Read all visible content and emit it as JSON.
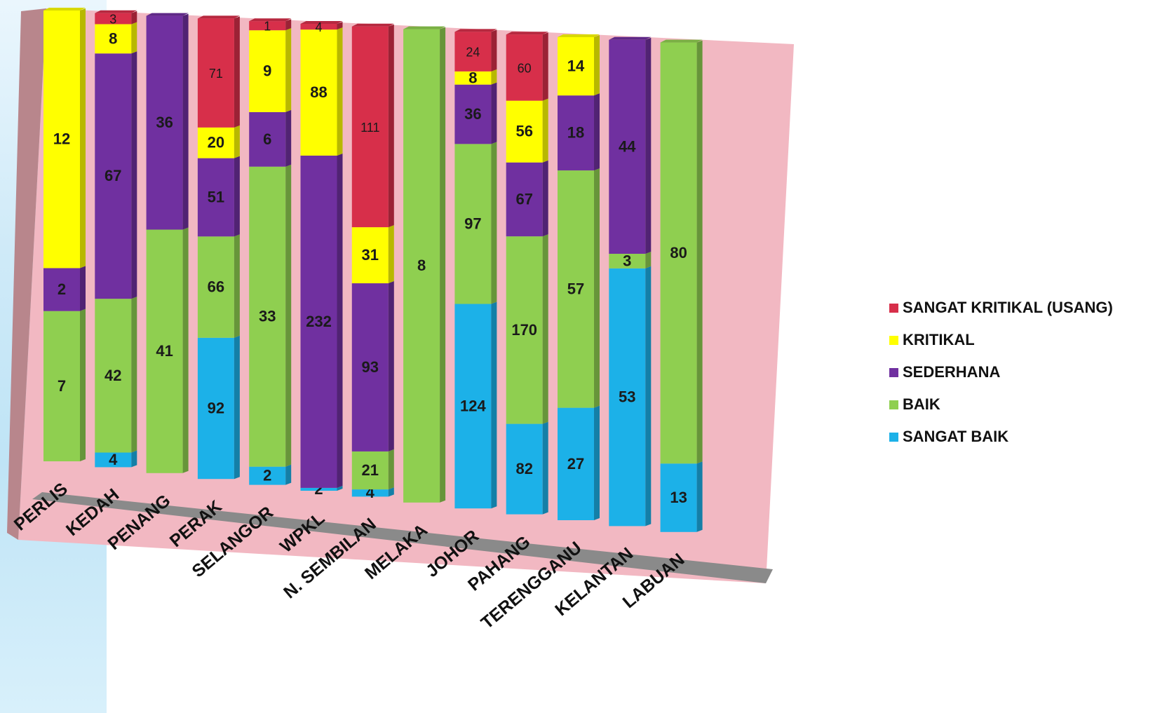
{
  "colors": {
    "plot_back_wall": "#f2b8c2",
    "plot_side_wall": "#b8868c",
    "floor": "#8a8a8a"
  },
  "chart_data": {
    "type": "bar",
    "stacked": true,
    "three_d": true,
    "title": "",
    "xlabel": "",
    "ylabel": "",
    "categories": [
      "PERLIS",
      "KEDAH",
      "PENANG",
      "PERAK",
      "SELANGOR",
      "WPKL",
      "N. SEMBILAN",
      "MELAKA",
      "JOHOR",
      "PAHANG",
      "TERENGGANU",
      "KELANTAN",
      "LABUAN"
    ],
    "series": [
      {
        "name": "SANGAT BAIK",
        "color": "#1cb1e8",
        "values": [
          null,
          4,
          null,
          92,
          2,
          2,
          4,
          null,
          124,
          82,
          27,
          53,
          13
        ]
      },
      {
        "name": "BAIK",
        "color": "#8fcf50",
        "values": [
          7,
          42,
          41,
          66,
          33,
          null,
          21,
          8,
          97,
          170,
          57,
          3,
          80
        ]
      },
      {
        "name": "SEDERHANA",
        "color": "#7030a0",
        "values": [
          2,
          67,
          36,
          51,
          6,
          232,
          93,
          null,
          36,
          67,
          18,
          44,
          null
        ]
      },
      {
        "name": "KRITIKAL",
        "color": "#ffff00",
        "values": [
          12,
          8,
          null,
          20,
          9,
          88,
          31,
          null,
          8,
          56,
          14,
          null,
          null
        ]
      },
      {
        "name": "SANGAT KRITIKAL (USANG)",
        "color": "#d72f4a",
        "values": [
          null,
          3,
          null,
          71,
          1,
          4,
          111,
          null,
          24,
          60,
          null,
          null,
          null
        ]
      }
    ],
    "legend_position": "right",
    "legend_order": [
      "SANGAT KRITIKAL (USANG)",
      "KRITIKAL",
      "SEDERHANA",
      "BAIK",
      "SANGAT BAIK"
    ],
    "grid": false
  }
}
